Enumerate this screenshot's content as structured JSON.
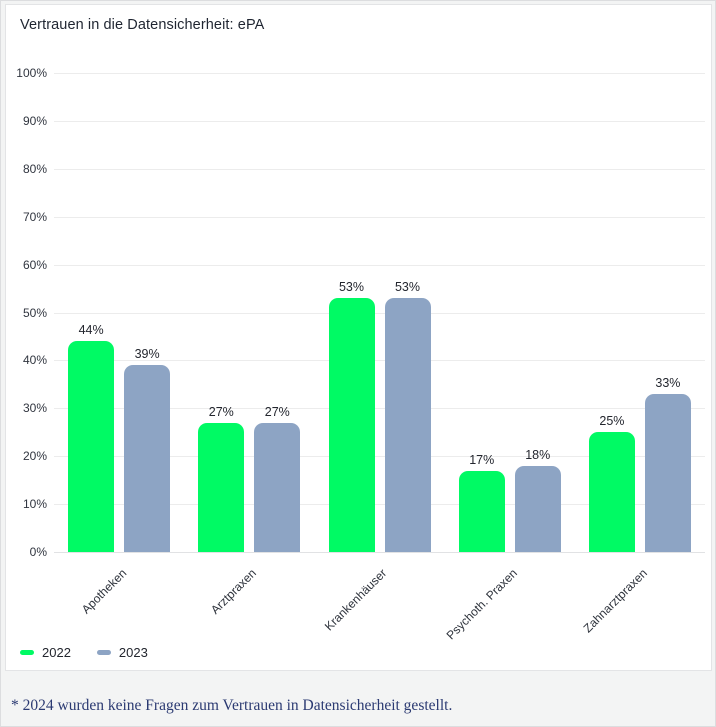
{
  "page": {
    "background": "#f3f4f4",
    "card_border": "#e3e4e6",
    "gridline_color": "#ececec"
  },
  "card": {
    "title": "Vertrauen in die Datensicherheit: ePA"
  },
  "footnote": "* 2024 wurden keine Fragen zum Vertrauen in Datensicherheit gestellt.",
  "chart_data": {
    "type": "bar",
    "title": "Vertrauen in die Datensicherheit: ePA",
    "categories": [
      "Apotheken",
      "Arztpraxen",
      "Krankenhäuser",
      "Psychoth. Praxen",
      "Zahnarztpraxen"
    ],
    "series": [
      {
        "name": "2022",
        "color": "#00fa64",
        "values": [
          44,
          27,
          53,
          17,
          25
        ]
      },
      {
        "name": "2023",
        "color": "#8da4c4",
        "values": [
          39,
          27,
          53,
          18,
          33
        ]
      }
    ],
    "value_suffix": "%",
    "xlabel": "",
    "ylabel": "",
    "ylim": [
      0,
      100
    ],
    "y_ticks": [
      0,
      10,
      20,
      30,
      40,
      50,
      60,
      70,
      80,
      90,
      100
    ],
    "grid": true,
    "legend_position": "bottom-left"
  }
}
